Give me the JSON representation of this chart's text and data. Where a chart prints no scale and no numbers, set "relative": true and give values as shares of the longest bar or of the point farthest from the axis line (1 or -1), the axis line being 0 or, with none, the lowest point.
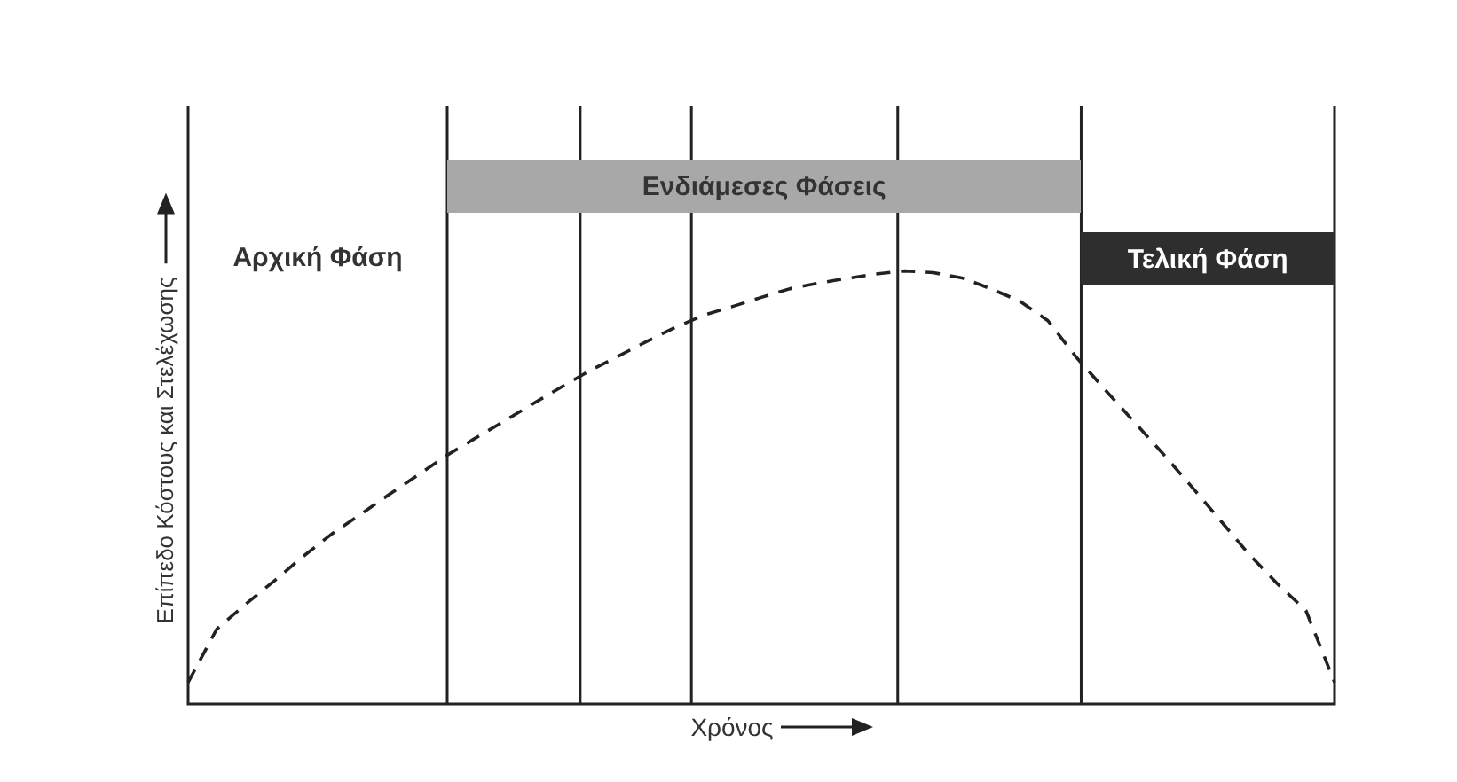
{
  "chart_data": {
    "type": "line",
    "relative": true,
    "xlabel": "Χρόνος",
    "ylabel": "Επίπεδο Κόστους και Στελέχωσης",
    "line_style": "dashed",
    "categories": [
      null,
      null,
      null,
      null,
      null,
      null,
      null,
      null,
      null,
      null,
      null,
      null,
      null,
      null,
      null,
      null,
      null,
      null,
      null,
      null,
      null,
      null,
      null,
      null,
      null,
      null,
      null,
      null,
      null,
      null,
      null,
      null,
      null,
      null,
      null,
      null,
      null,
      null,
      null,
      null,
      null
    ],
    "series": [
      {
        "color": "#222222",
        "values": [
          0.05,
          0.173,
          0.23,
          0.284,
          0.34,
          0.392,
          0.437,
          0.483,
          0.528,
          0.573,
          0.613,
          0.652,
          0.692,
          0.731,
          0.769,
          0.803,
          0.837,
          0.87,
          0.898,
          0.918,
          0.939,
          0.959,
          0.972,
          0.983,
          0.993,
          1,
          0.996,
          0.984,
          0.959,
          0.931,
          0.885,
          0.8,
          0.725,
          0.652,
          0.579,
          0.503,
          0.425,
          0.347,
          0.278,
          0.216,
          0.05
        ]
      }
    ],
    "annotations": [
      "Αρχική Φάση",
      "Ενδιάμεσες Φάσεις",
      "Τελική Φάση"
    ]
  }
}
